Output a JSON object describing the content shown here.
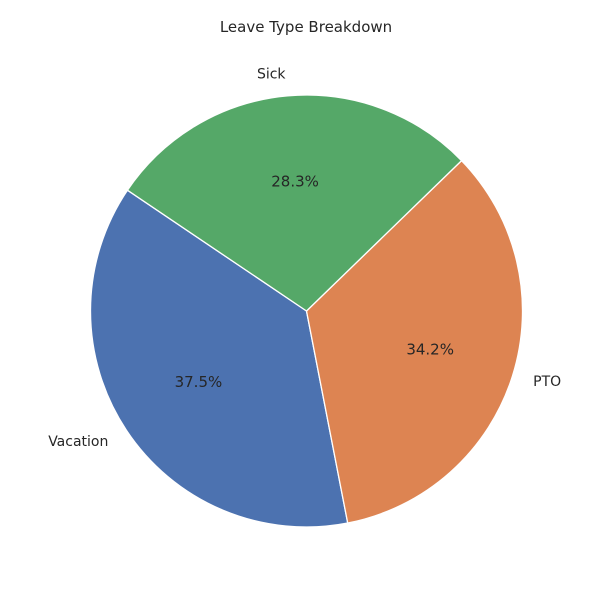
{
  "chart_data": {
    "type": "pie",
    "title": "Leave Type Breakdown",
    "categories": [
      "Vacation",
      "PTO",
      "Sick"
    ],
    "values": [
      37.5,
      34.2,
      28.3
    ],
    "percent_labels": [
      "37.5%",
      "34.2%",
      "28.3%"
    ],
    "colors": [
      "#4C72B0",
      "#DD8452",
      "#55A868"
    ],
    "start_angle_deg": 146,
    "direction": "counterclockwise"
  }
}
